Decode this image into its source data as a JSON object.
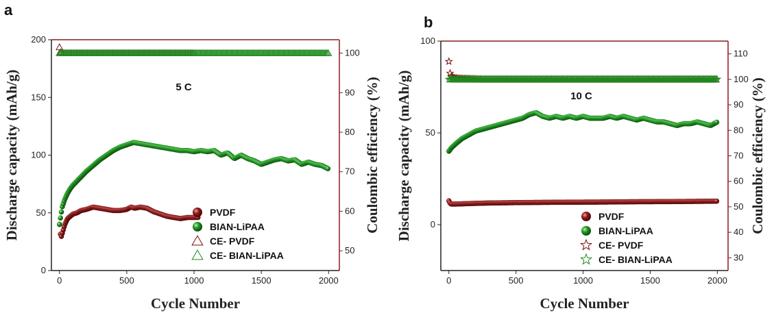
{
  "colors": {
    "pvdf": "#7a0c0c",
    "bian": "#1f8a1f",
    "left_axis": "#222222",
    "right_axis": "#8b1a1a"
  },
  "chart_data": [
    {
      "panel": "a",
      "type": "scatter",
      "annotation": "5 C",
      "xlabel": "Cycle Number",
      "ylabel": "Discharge capacity (mAh/g)",
      "y2label": "Coulombic efficiency (%)",
      "xlim": [
        -60,
        2080
      ],
      "ylim": [
        0,
        200
      ],
      "y2lim": [
        45,
        103.4
      ],
      "x_ticks": [
        0,
        500,
        1000,
        1500,
        2000
      ],
      "y_ticks": [
        0,
        50,
        100,
        150,
        200
      ],
      "y2_ticks": [
        50,
        60,
        70,
        80,
        90,
        100
      ],
      "legend_position": "bottom-right",
      "series": [
        {
          "name": "PVDF",
          "axis": "left",
          "marker": "sphere",
          "color_key": "pvdf",
          "x": [
            0,
            10,
            20,
            40,
            60,
            80,
            100,
            130,
            160,
            200,
            250,
            300,
            350,
            400,
            450,
            500,
            530,
            560,
            600,
            650,
            700,
            750,
            800,
            850,
            900,
            950,
            1000,
            1030
          ],
          "y": [
            40,
            28,
            32,
            40,
            45,
            47,
            49,
            50,
            52,
            53,
            55,
            54,
            53,
            52,
            52,
            53,
            55,
            54,
            55,
            54,
            51,
            49,
            47,
            46,
            45,
            46,
            46,
            46
          ]
        },
        {
          "name": "BIAN-LiPAA",
          "axis": "left",
          "marker": "sphere",
          "color_key": "bian",
          "x": [
            0,
            10,
            20,
            40,
            60,
            80,
            100,
            150,
            200,
            250,
            300,
            350,
            400,
            450,
            500,
            550,
            600,
            650,
            700,
            750,
            800,
            850,
            900,
            950,
            1000,
            1050,
            1100,
            1150,
            1200,
            1250,
            1300,
            1350,
            1400,
            1450,
            1500,
            1550,
            1600,
            1650,
            1700,
            1750,
            1800,
            1850,
            1900,
            1950,
            2000
          ],
          "y": [
            40,
            48,
            55,
            62,
            67,
            71,
            74,
            80,
            86,
            91,
            96,
            100,
            104,
            107,
            109,
            111,
            110,
            109,
            108,
            107,
            106,
            105,
            104,
            104,
            103,
            104,
            103,
            104,
            100,
            102,
            97,
            100,
            97,
            95,
            92,
            94,
            96,
            97,
            95,
            96,
            92,
            94,
            92,
            91,
            88
          ]
        },
        {
          "name": "CE- PVDF",
          "axis": "right",
          "marker": "triangle",
          "color_key": "pvdf",
          "x": [
            0,
            5,
            10,
            20,
            40,
            80,
            150,
            250,
            400,
            550,
            700,
            850,
            1000
          ],
          "y": [
            101.5,
            100.5,
            100.2,
            100,
            100,
            100,
            100,
            100,
            100,
            100,
            100,
            100,
            100
          ]
        },
        {
          "name": "CE- BIAN-LiPAA",
          "axis": "right",
          "marker": "triangle",
          "color_key": "bian",
          "x": [
            0,
            100,
            200,
            300,
            400,
            500,
            600,
            700,
            800,
            900,
            1000,
            1100,
            1200,
            1300,
            1400,
            1500,
            1600,
            1700,
            1800,
            1900,
            2000
          ],
          "y": [
            100,
            100,
            100,
            100,
            100,
            100,
            100,
            100,
            100,
            100,
            100,
            100,
            100,
            100,
            100,
            100,
            100,
            100,
            100,
            100,
            100
          ]
        }
      ]
    },
    {
      "panel": "b",
      "type": "scatter",
      "annotation": "10 C",
      "xlabel": "Cycle Number",
      "ylabel": "Discharge capacity (mAh/g)",
      "y2label": "Coulombic efficiency (%)",
      "xlim": [
        -60,
        2080
      ],
      "ylim": [
        -25,
        100
      ],
      "y2lim": [
        25,
        115
      ],
      "x_ticks": [
        0,
        500,
        1000,
        1500,
        2000
      ],
      "y_ticks": [
        0,
        50,
        100
      ],
      "y2_ticks": [
        30,
        40,
        50,
        60,
        70,
        80,
        90,
        100,
        110
      ],
      "legend_position": "bottom-right",
      "series": [
        {
          "name": "PVDF",
          "axis": "left",
          "marker": "sphere",
          "color_key": "pvdf",
          "x": [
            0,
            10,
            20,
            40,
            80,
            150,
            300,
            500,
            800,
            1100,
            1400,
            1700,
            2000
          ],
          "y": [
            13,
            11.5,
            11.2,
            11.2,
            11.3,
            11.5,
            11.8,
            12,
            12.2,
            12.3,
            12.5,
            12.6,
            12.8
          ]
        },
        {
          "name": "BIAN-LiPAA",
          "axis": "left",
          "marker": "sphere",
          "color_key": "bian",
          "x": [
            0,
            20,
            50,
            100,
            150,
            200,
            250,
            300,
            350,
            400,
            450,
            500,
            550,
            600,
            650,
            700,
            750,
            800,
            850,
            900,
            950,
            1000,
            1050,
            1100,
            1150,
            1200,
            1250,
            1300,
            1350,
            1400,
            1450,
            1500,
            1550,
            1600,
            1650,
            1700,
            1750,
            1800,
            1850,
            1900,
            1950,
            2000
          ],
          "y": [
            40,
            42,
            44,
            47,
            49,
            51,
            52,
            53,
            54,
            55,
            56,
            57,
            58,
            60,
            61,
            59,
            58,
            59,
            58,
            59,
            58,
            59,
            58,
            58,
            58,
            59,
            58,
            59,
            58,
            57,
            58,
            57,
            56,
            56,
            55,
            54,
            55,
            55,
            56,
            55,
            54,
            56
          ]
        },
        {
          "name": "CE- PVDF",
          "axis": "right",
          "marker": "star",
          "color_key": "pvdf",
          "x": [
            0,
            5,
            10,
            20,
            40,
            80,
            150,
            250,
            400,
            600,
            800,
            1000,
            1200,
            1400,
            1600,
            1800,
            2000
          ],
          "y": [
            107,
            104,
            102,
            101,
            100.5,
            100.3,
            100.2,
            100,
            100,
            100,
            100,
            100,
            100,
            100,
            100,
            100,
            100
          ]
        },
        {
          "name": "CE- BIAN-LiPAA",
          "axis": "right",
          "marker": "star",
          "color_key": "bian",
          "x": [
            0,
            100,
            200,
            300,
            400,
            500,
            600,
            700,
            800,
            900,
            1000,
            1100,
            1200,
            1300,
            1400,
            1500,
            1600,
            1700,
            1800,
            1900,
            2000
          ],
          "y": [
            100,
            100,
            100,
            100,
            100,
            100,
            100,
            100,
            100,
            100,
            100,
            100,
            100,
            100,
            100,
            100,
            100,
            100,
            100,
            100,
            100
          ]
        }
      ]
    }
  ]
}
